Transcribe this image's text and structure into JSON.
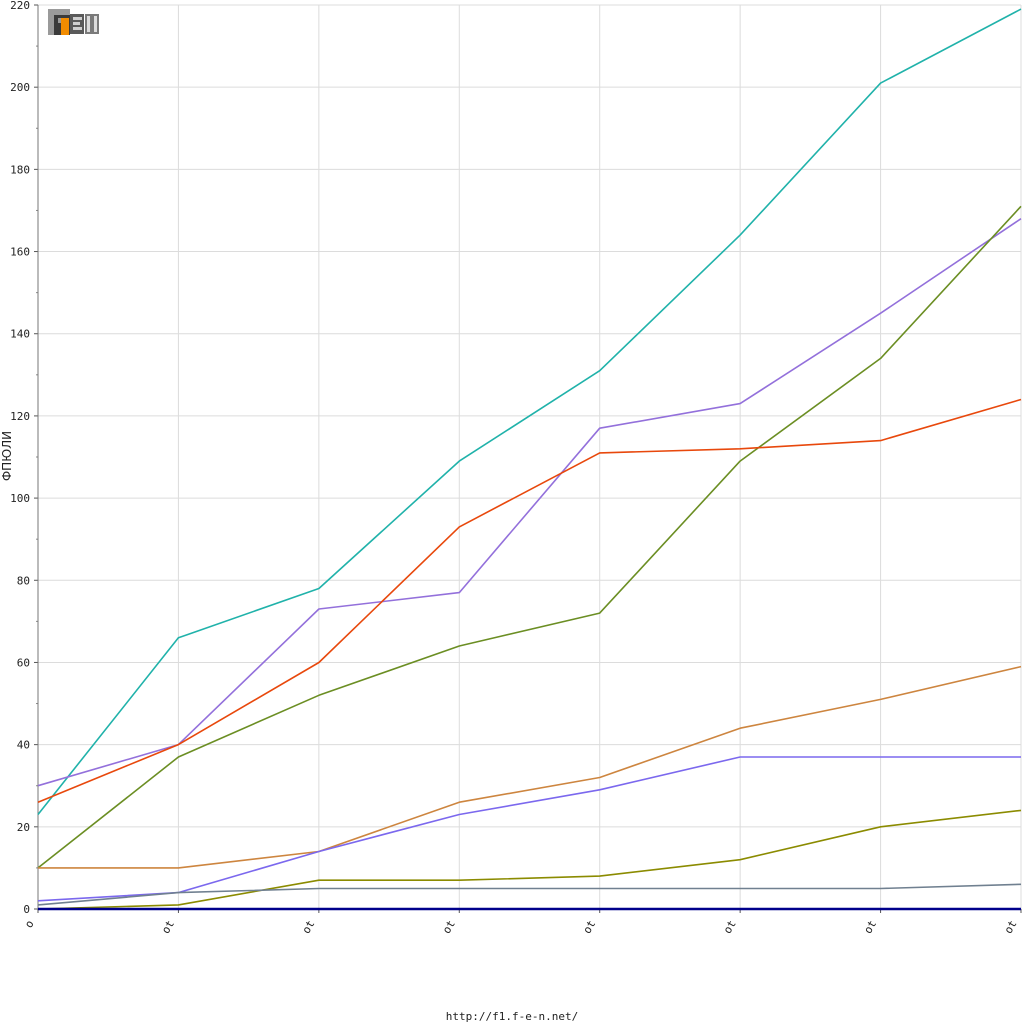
{
  "footer": {
    "url": "http://f1.f-e-n.net/"
  },
  "logo": {
    "alt": "F1EN"
  },
  "chart_data": {
    "type": "line",
    "ylabel": "ФПЮЛИ",
    "ylim": [
      0,
      220
    ],
    "yticks": [
      0,
      20,
      40,
      60,
      80,
      100,
      120,
      140,
      160,
      180,
      200,
      220
    ],
    "x": [
      0,
      1,
      2,
      3,
      4,
      5,
      6,
      7
    ],
    "x_tick_labels": [
      "o",
      "ot",
      "ot",
      "ot",
      "ot",
      "ot",
      "ot",
      "ot"
    ],
    "grid": true,
    "series": [
      {
        "color": "#20b2aa",
        "values": [
          23,
          66,
          78,
          109,
          131,
          164,
          201,
          219
        ]
      },
      {
        "color": "#9370db",
        "values": [
          30,
          40,
          73,
          77,
          117,
          123,
          145,
          168
        ]
      },
      {
        "color": "#6b8e23",
        "values": [
          10,
          37,
          52,
          64,
          72,
          109,
          134,
          171
        ]
      },
      {
        "color": "#e8480c",
        "values": [
          26,
          40,
          60,
          93,
          111,
          112,
          114,
          124
        ]
      },
      {
        "color": "#cd853f",
        "values": [
          10,
          10,
          14,
          26,
          32,
          44,
          51,
          59
        ]
      },
      {
        "color": "#7b68ee",
        "values": [
          2,
          4,
          14,
          23,
          29,
          37,
          37,
          37
        ]
      },
      {
        "color": "#8b8b00",
        "values": [
          0,
          1,
          7,
          7,
          8,
          12,
          20,
          24
        ]
      },
      {
        "color": "#708090",
        "values": [
          1,
          4,
          5,
          5,
          5,
          5,
          5,
          6
        ]
      },
      {
        "color": "#00008b",
        "values": [
          0,
          0,
          0,
          0,
          0,
          0,
          0,
          0
        ]
      }
    ]
  }
}
